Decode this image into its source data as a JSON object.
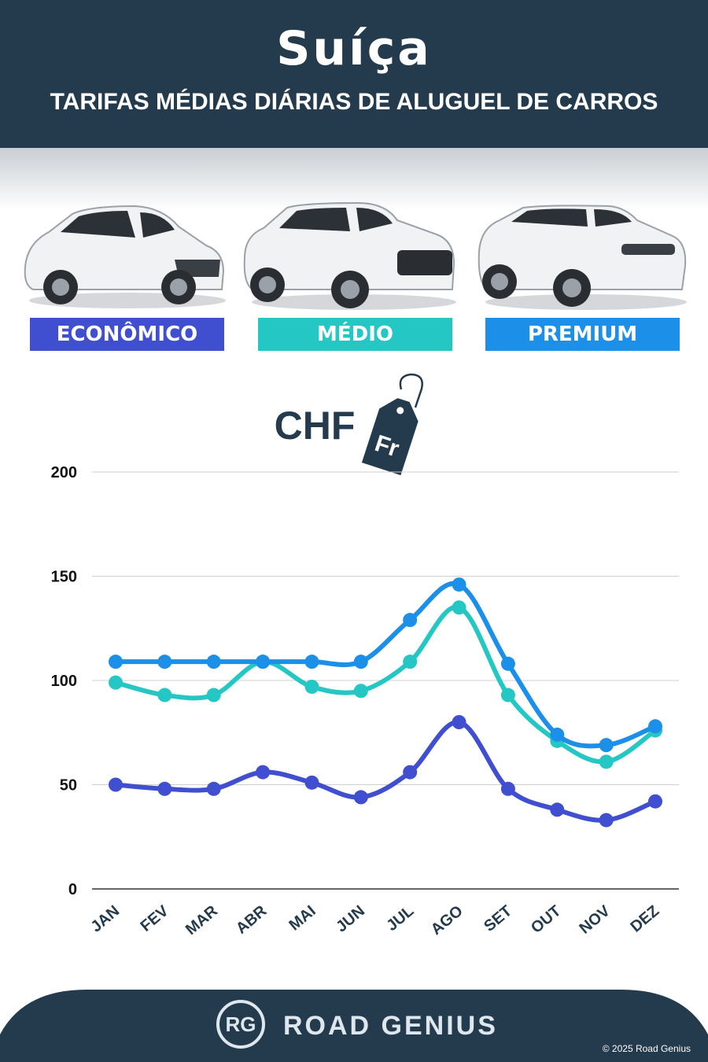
{
  "header": {
    "title": "Suíça",
    "subtitle": "TARIFAS MÉDIAS DIÁRIAS DE ALUGUEL DE CARROS"
  },
  "categories": {
    "economico": "ECONÔMICO",
    "medio": "MÉDIO",
    "premium": "PREMIUM"
  },
  "currency": {
    "label": "CHF",
    "tag": "Fr"
  },
  "footer": {
    "logo_initials": "RG",
    "brand": "ROAD GENIUS",
    "copyright": "© 2025 Road Genius"
  },
  "colors": {
    "header_bg": "#243a4d",
    "economico": "#3f4fcf",
    "medio": "#25c7c5",
    "premium": "#1c8fe8"
  },
  "chart_data": {
    "type": "line",
    "categories": [
      "JAN",
      "FEV",
      "MAR",
      "ABR",
      "MAI",
      "JUN",
      "JUL",
      "AGO",
      "SET",
      "OUT",
      "NOV",
      "DEZ"
    ],
    "ylim": [
      0,
      200
    ],
    "yticks": [
      0,
      50,
      100,
      150,
      200
    ],
    "grid": true,
    "series": [
      {
        "name": "ECONÔMICO",
        "color": "#3f4fcf",
        "values": [
          50,
          48,
          48,
          56,
          51,
          44,
          56,
          80,
          48,
          38,
          33,
          42
        ]
      },
      {
        "name": "MÉDIO",
        "color": "#25c7c5",
        "values": [
          99,
          93,
          93,
          109,
          97,
          95,
          109,
          135,
          93,
          71,
          61,
          76
        ]
      },
      {
        "name": "PREMIUM",
        "color": "#1c8fe8",
        "values": [
          109,
          109,
          109,
          109,
          109,
          109,
          129,
          146,
          108,
          74,
          69,
          78
        ]
      }
    ]
  }
}
